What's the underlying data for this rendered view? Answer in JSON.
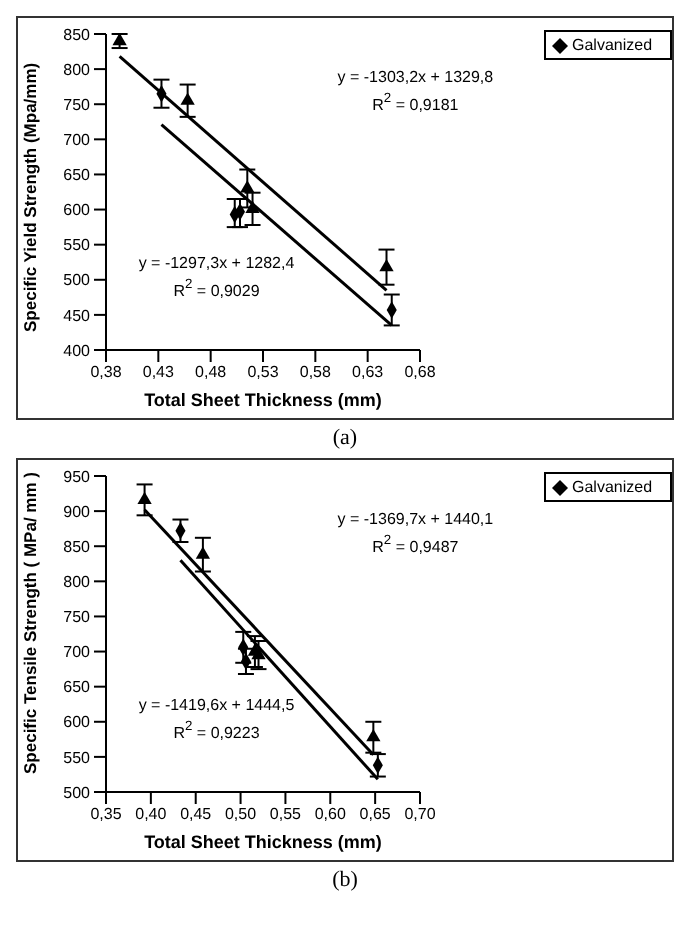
{
  "chart_data": [
    {
      "type": "scatter",
      "xlabel": "Total Sheet Thickness (mm)",
      "ylabel": "Specific Yield Strength (Mpa/mm)",
      "xlim": [
        0.38,
        0.68
      ],
      "xticks": [
        {
          "value": 0.38,
          "label": "0,38"
        },
        {
          "value": 0.43,
          "label": "0,43"
        },
        {
          "value": 0.48,
          "label": "0,48"
        },
        {
          "value": 0.53,
          "label": "0,53"
        },
        {
          "value": 0.58,
          "label": "0,58"
        },
        {
          "value": 0.63,
          "label": "0,63"
        },
        {
          "value": 0.68,
          "label": "0,68"
        }
      ],
      "ylim": [
        400,
        850
      ],
      "yticks": [
        400,
        450,
        500,
        550,
        600,
        650,
        700,
        750,
        800,
        850
      ],
      "legend": "top right",
      "series": [
        {
          "name": "Galvanized",
          "color": "#000000",
          "marker": "diamond",
          "x": [
            0.433,
            0.503,
            0.508,
            0.653
          ],
          "values": [
            765,
            593,
            597,
            457
          ],
          "errors": [
            20,
            [
              575,
              615
            ],
            [
              575,
              615
            ],
            22
          ]
        },
        {
          "color": "#000000",
          "marker": "triangle",
          "x": [
            0.393,
            0.458,
            0.515,
            0.52,
            0.648
          ],
          "values": [
            840,
            755,
            630,
            601,
            518
          ],
          "errors": [
            10,
            23,
            27,
            23,
            25
          ]
        },
        {
          "type": "line",
          "color": "#000000",
          "marker": "none",
          "x": [
            0.393,
            0.648
          ],
          "values": [
            818,
            485
          ]
        },
        {
          "type": "line",
          "color": "#000000",
          "marker": "none",
          "x": [
            0.433,
            0.653
          ],
          "values": [
            721,
            435
          ]
        }
      ],
      "annotations": [
        "y = -1303,2x + 1329,8",
        "R$^{2}$ = 0,9181",
        "y = -1297,3x + 1282,4",
        "R$^{2}$ = 0,9029",
        "(a)"
      ]
    },
    {
      "type": "scatter",
      "xlabel": "Total Sheet Thickness (mm)",
      "ylabel": "Specific Tensile Strength ( MPa/ mm )",
      "xlim": [
        0.35,
        0.7
      ],
      "xticks": [
        {
          "value": 0.35,
          "label": "0,35"
        },
        {
          "value": 0.4,
          "label": "0,40"
        },
        {
          "value": 0.45,
          "label": "0,45"
        },
        {
          "value": 0.5,
          "label": "0,50"
        },
        {
          "value": 0.55,
          "label": "0,55"
        },
        {
          "value": 0.6,
          "label": "0,60"
        },
        {
          "value": 0.65,
          "label": "0,65"
        },
        {
          "value": 0.7,
          "label": "0,70"
        }
      ],
      "ylim": [
        500,
        950
      ],
      "yticks": [
        500,
        550,
        600,
        650,
        700,
        750,
        800,
        850,
        900,
        950
      ],
      "legend": "top right",
      "series": [
        {
          "name": "Galvanized",
          "color": "#000000",
          "marker": "diamond",
          "x": [
            0.433,
            0.503,
            0.506,
            0.653
          ],
          "values": [
            872,
            706,
            686,
            538
          ],
          "errors": [
            16,
            22,
            18,
            16
          ]
        },
        {
          "color": "#000000",
          "marker": "triangle",
          "x": [
            0.393,
            0.458,
            0.516,
            0.52,
            0.648
          ],
          "values": [
            916,
            838,
            700,
            695,
            578
          ],
          "errors": [
            22,
            24,
            22,
            20,
            22
          ]
        },
        {
          "type": "line",
          "color": "#000000",
          "marker": "none",
          "x": [
            0.393,
            0.648
          ],
          "values": [
            902,
            553
          ]
        },
        {
          "type": "line",
          "color": "#000000",
          "marker": "none",
          "x": [
            0.433,
            0.653
          ],
          "values": [
            830,
            518
          ]
        }
      ],
      "annotations": [
        "y = -1369,7x + 1440,1",
        "R$^{2}$ = 0,9487",
        "y = -1419,6x + 1444,5",
        "R$^{2}$ = 0,9223",
        "(b)"
      ]
    }
  ]
}
